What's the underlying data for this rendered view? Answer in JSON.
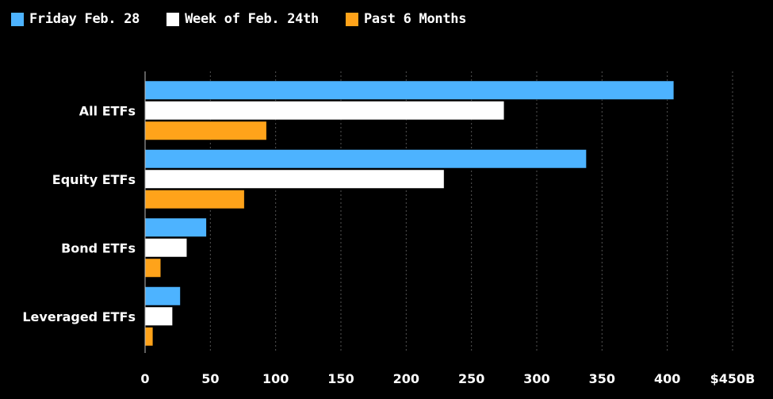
{
  "chart_data": {
    "type": "bar",
    "orientation": "horizontal",
    "title": "",
    "xlabel": "",
    "ylabel": "",
    "categories": [
      "All ETFs",
      "Equity ETFs",
      "Bond ETFs",
      "Leveraged ETFs"
    ],
    "series": [
      {
        "name": "Friday Feb. 28",
        "color": "#4db3ff",
        "values": [
          405,
          338,
          47,
          27
        ]
      },
      {
        "name": "Week of Feb. 24th",
        "color": "#ffffff",
        "values": [
          275,
          229,
          32,
          21
        ]
      },
      {
        "name": "Past 6 Months",
        "color": "#ffa31a",
        "values": [
          93,
          76,
          12,
          6
        ]
      }
    ],
    "xlim": [
      0,
      450
    ],
    "xticks": [
      0,
      50,
      100,
      150,
      200,
      250,
      300,
      350,
      400,
      450
    ],
    "xtick_labels": [
      "0",
      "50",
      "100",
      "150",
      "200",
      "250",
      "300",
      "350",
      "400",
      "$450B"
    ],
    "grid": true,
    "legend_position": "top-left"
  },
  "colors": {
    "background": "#000000",
    "grid": "#555555",
    "axis": "#bbbbbb"
  }
}
